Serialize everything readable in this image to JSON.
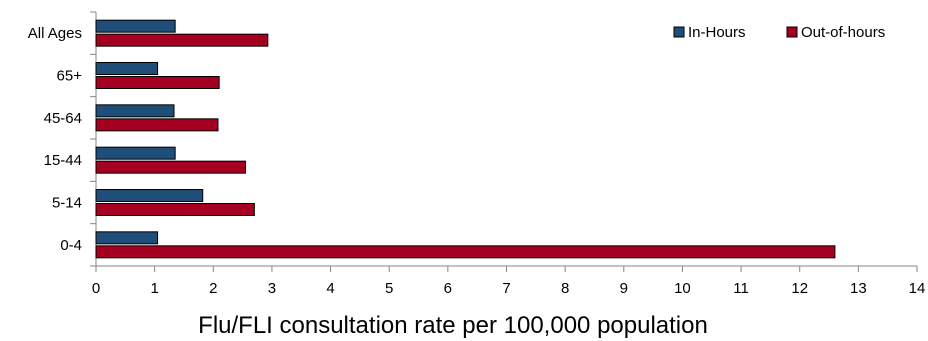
{
  "chart_data": {
    "type": "bar",
    "orientation": "horizontal",
    "categories": [
      "All Ages",
      "65+",
      "45-64",
      "15-44",
      "5-14",
      "0-4"
    ],
    "series": [
      {
        "name": "In-Hours",
        "color": "#1f4e79",
        "values": [
          1.35,
          1.05,
          1.33,
          1.35,
          1.82,
          1.05
        ]
      },
      {
        "name": "Out-of-hours",
        "color": "#a50021",
        "values": [
          2.93,
          2.1,
          2.08,
          2.55,
          2.7,
          12.6
        ]
      }
    ],
    "x_ticks": [
      "0",
      "1",
      "2",
      "3",
      "4",
      "5",
      "6",
      "7",
      "8",
      "9",
      "10",
      "11",
      "12",
      "13",
      "14"
    ],
    "xlim": [
      0,
      14
    ],
    "xlabel": "Flu/FLI consultation rate per 100,000 population",
    "ylabel": "",
    "title": "",
    "grid": false,
    "legend_position": "top-right"
  }
}
